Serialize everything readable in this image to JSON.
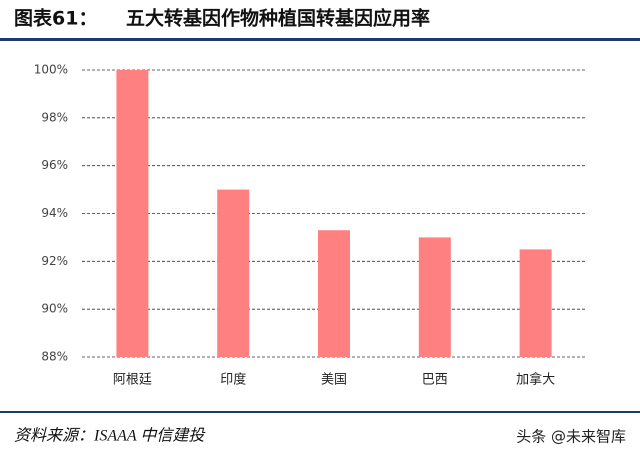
{
  "chart_data": {
    "type": "bar",
    "figure_label": "图表61：",
    "title": "五大转基因作物种植国转基因应用率",
    "categories": [
      "阿根廷",
      "印度",
      "美国",
      "巴西",
      "加拿大"
    ],
    "values": [
      100,
      95,
      93.3,
      93,
      92.5
    ],
    "color": "#ff8080",
    "ylim": [
      88,
      100
    ],
    "yticks": [
      {
        "value": 88,
        "label": "88%"
      },
      {
        "value": 90,
        "label": "90%"
      },
      {
        "value": 92,
        "label": "92%"
      },
      {
        "value": 94,
        "label": "94%"
      },
      {
        "value": 96,
        "label": "96%"
      },
      {
        "value": 98,
        "label": "98%"
      },
      {
        "value": 100,
        "label": "100%"
      }
    ],
    "grid": true,
    "source": "资料来源：ISAAA 中信建投",
    "watermark": "头条 @未来智库"
  }
}
